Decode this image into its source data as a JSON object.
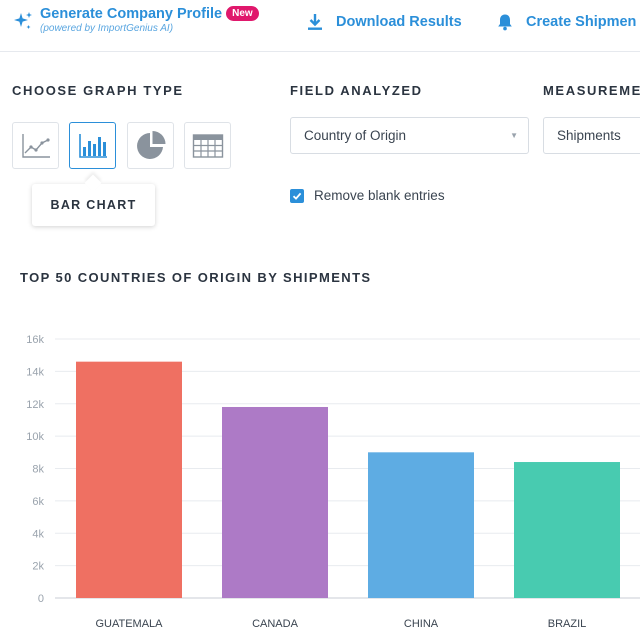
{
  "header": {
    "generate_title": "Generate Company Profile",
    "generate_badge": "New",
    "generate_subtitle": "(powered by ImportGenius AI)",
    "download_label": "Download Results",
    "shipment_label": "Create Shipmen"
  },
  "graph_type": {
    "label": "CHOOSE GRAPH TYPE",
    "options": [
      "line",
      "bar",
      "pie",
      "table"
    ],
    "selected": "bar",
    "tooltip": "BAR CHART"
  },
  "field": {
    "label": "FIELD ANALYZED",
    "value": "Country of Origin"
  },
  "measurement": {
    "label": "MEASUREME",
    "value": "Shipments"
  },
  "remove_blank": {
    "label": "Remove blank entries",
    "checked": true
  },
  "chart_data": {
    "type": "bar",
    "title": "TOP 50 COUNTRIES OF ORIGIN BY SHIPMENTS",
    "categories": [
      "GUATEMALA",
      "CANADA",
      "CHINA",
      "BRAZIL"
    ],
    "values": [
      14600,
      11800,
      9000,
      8400
    ],
    "colors": [
      "#ef7062",
      "#ad7ac6",
      "#5eace3",
      "#48cbb0"
    ],
    "ylim": [
      0,
      16000
    ],
    "yticks": [
      0,
      2000,
      4000,
      6000,
      8000,
      10000,
      12000,
      14000,
      16000
    ],
    "ytick_labels": [
      "0",
      "2k",
      "4k",
      "6k",
      "8k",
      "10k",
      "12k",
      "14k",
      "16k"
    ],
    "grid": true,
    "xlabel": "",
    "ylabel": ""
  },
  "colors": {
    "accent": "#2b8fd9",
    "badge": "#e0186c"
  }
}
